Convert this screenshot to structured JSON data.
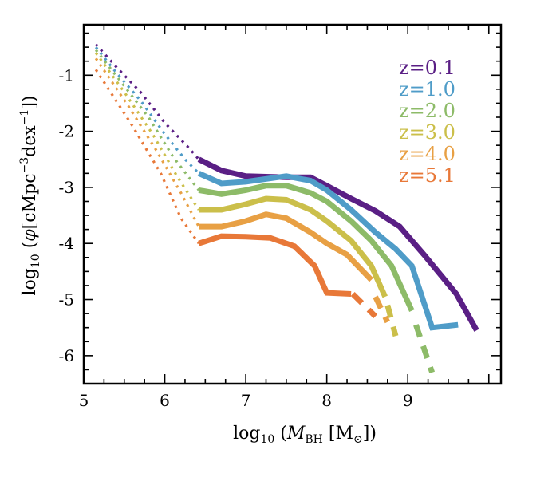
{
  "chart_data": {
    "type": "line",
    "title": "",
    "xlabel": {
      "pre": "log",
      "sub": "10",
      "mid": " (",
      "var": "M",
      "varsub": "BH",
      "unit": " [M",
      "unitsub": "⊙",
      "post": "])"
    },
    "ylabel": {
      "pre": "log",
      "sub": "10",
      "mid": " (",
      "var": "φ",
      "unit": "[cMpc",
      "sup1": "−3",
      "unit2": "dex",
      "sup2": "−1",
      "post": "])"
    },
    "xlim": [
      5,
      10.15
    ],
    "ylim": [
      -6.5,
      -0.1
    ],
    "x_ticks": [
      5,
      6,
      7,
      8,
      9
    ],
    "x_tick_labels": [
      "5",
      "6",
      "7",
      "8",
      "9"
    ],
    "y_ticks": [
      -1,
      -2,
      -3,
      -4,
      -5,
      -6
    ],
    "y_tick_labels": [
      "-1",
      "-2",
      "-3",
      "-4",
      "-5",
      "-6"
    ],
    "legend_position": "top-right",
    "series": [
      {
        "name": "z=0.1",
        "color": "#5a1f85",
        "dotted": [
          [
            5.15,
            -0.45
          ],
          [
            5.4,
            -0.85
          ],
          [
            5.7,
            -1.3
          ],
          [
            6.0,
            -1.85
          ],
          [
            6.3,
            -2.3
          ],
          [
            6.42,
            -2.5
          ]
        ],
        "solid": [
          [
            6.42,
            -2.5
          ],
          [
            6.7,
            -2.7
          ],
          [
            7.0,
            -2.8
          ],
          [
            7.5,
            -2.82
          ],
          [
            7.8,
            -2.82
          ],
          [
            8.0,
            -2.97
          ],
          [
            8.3,
            -3.2
          ],
          [
            8.6,
            -3.42
          ],
          [
            8.9,
            -3.7
          ],
          [
            9.2,
            -4.2
          ],
          [
            9.6,
            -4.9
          ],
          [
            9.85,
            -5.55
          ]
        ],
        "dashed": []
      },
      {
        "name": "z=1.0",
        "color": "#4f9cc8",
        "dotted": [
          [
            5.15,
            -0.5
          ],
          [
            5.4,
            -0.95
          ],
          [
            5.7,
            -1.45
          ],
          [
            6.0,
            -2.05
          ],
          [
            6.25,
            -2.5
          ],
          [
            6.42,
            -2.75
          ]
        ],
        "solid": [
          [
            6.42,
            -2.75
          ],
          [
            6.7,
            -2.93
          ],
          [
            7.0,
            -2.9
          ],
          [
            7.5,
            -2.8
          ],
          [
            7.8,
            -2.88
          ],
          [
            8.0,
            -3.05
          ],
          [
            8.3,
            -3.4
          ],
          [
            8.6,
            -3.8
          ],
          [
            8.85,
            -4.1
          ],
          [
            9.05,
            -4.4
          ],
          [
            9.3,
            -5.5
          ],
          [
            9.62,
            -5.45
          ]
        ],
        "dashed": []
      },
      {
        "name": "z=2.0",
        "color": "#8dbb68",
        "dotted": [
          [
            5.15,
            -0.55
          ],
          [
            5.45,
            -1.1
          ],
          [
            5.8,
            -1.75
          ],
          [
            6.1,
            -2.45
          ],
          [
            6.42,
            -3.05
          ]
        ],
        "solid": [
          [
            6.42,
            -3.05
          ],
          [
            6.7,
            -3.12
          ],
          [
            7.0,
            -3.05
          ],
          [
            7.25,
            -2.97
          ],
          [
            7.5,
            -2.97
          ],
          [
            7.8,
            -3.1
          ],
          [
            8.0,
            -3.25
          ],
          [
            8.3,
            -3.6
          ],
          [
            8.55,
            -3.95
          ],
          [
            8.8,
            -4.4
          ],
          [
            9.05,
            -5.2
          ]
        ],
        "dashed": [
          [
            9.1,
            -5.45
          ],
          [
            9.3,
            -6.3
          ]
        ]
      },
      {
        "name": "z=3.0",
        "color": "#cbbf4a",
        "dotted": [
          [
            5.15,
            -0.6
          ],
          [
            5.5,
            -1.3
          ],
          [
            5.85,
            -2.05
          ],
          [
            6.15,
            -2.8
          ],
          [
            6.42,
            -3.4
          ]
        ],
        "solid": [
          [
            6.42,
            -3.4
          ],
          [
            6.7,
            -3.4
          ],
          [
            7.0,
            -3.3
          ],
          [
            7.25,
            -3.2
          ],
          [
            7.5,
            -3.22
          ],
          [
            7.8,
            -3.4
          ],
          [
            8.0,
            -3.6
          ],
          [
            8.3,
            -3.95
          ],
          [
            8.55,
            -4.4
          ],
          [
            8.72,
            -4.95
          ]
        ],
        "dashed": [
          [
            8.75,
            -5.1
          ],
          [
            8.85,
            -5.65
          ]
        ]
      },
      {
        "name": "z=4.0",
        "color": "#e8a044",
        "dotted": [
          [
            5.15,
            -0.7
          ],
          [
            5.55,
            -1.55
          ],
          [
            5.9,
            -2.35
          ],
          [
            6.2,
            -3.1
          ],
          [
            6.42,
            -3.7
          ]
        ],
        "solid": [
          [
            6.42,
            -3.7
          ],
          [
            6.7,
            -3.7
          ],
          [
            7.0,
            -3.6
          ],
          [
            7.25,
            -3.48
          ],
          [
            7.5,
            -3.55
          ],
          [
            7.8,
            -3.8
          ],
          [
            8.0,
            -4.0
          ],
          [
            8.25,
            -4.2
          ],
          [
            8.55,
            -4.65
          ]
        ],
        "dashed": [
          [
            8.6,
            -4.95
          ],
          [
            8.75,
            -5.4
          ]
        ]
      },
      {
        "name": "z=5.1",
        "color": "#e87838",
        "dotted": [
          [
            5.15,
            -0.9
          ],
          [
            5.6,
            -1.9
          ],
          [
            5.95,
            -2.75
          ],
          [
            6.2,
            -3.55
          ],
          [
            6.42,
            -4.0
          ]
        ],
        "solid": [
          [
            6.42,
            -4.0
          ],
          [
            6.7,
            -3.87
          ],
          [
            7.0,
            -3.88
          ],
          [
            7.3,
            -3.9
          ],
          [
            7.6,
            -4.05
          ],
          [
            7.85,
            -4.4
          ],
          [
            8.0,
            -4.88
          ],
          [
            8.3,
            -4.9
          ]
        ],
        "dashed": [
          [
            8.32,
            -4.9
          ],
          [
            8.6,
            -5.3
          ]
        ]
      }
    ]
  }
}
